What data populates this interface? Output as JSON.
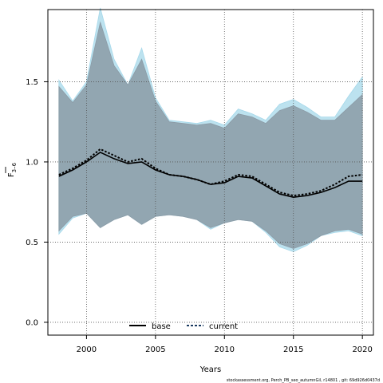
{
  "chart_data": {
    "type": "line",
    "xlabel": "Years",
    "ylabel_main": "F",
    "ylabel_sub": "3–6",
    "xlim": [
      1997.2,
      2020.8
    ],
    "ylim": [
      -0.08,
      1.95
    ],
    "x_ticks": [
      2000,
      2005,
      2010,
      2015,
      2020
    ],
    "x_tick_labels": [
      "2000",
      "2005",
      "2010",
      "2015",
      "2020"
    ],
    "y_ticks": [
      0.0,
      0.5,
      1.0,
      1.5
    ],
    "y_tick_labels": [
      "0.0",
      "0.5",
      "1.0",
      "1.5"
    ],
    "grid": true,
    "legend_position": "bottom-center",
    "footer_text": "stockassessment.org, Perch_PB_seo_autumnGil, r14801 , git: 69d926d0437d",
    "colors": {
      "base_band": "#8b9ba6",
      "current_band": "#a6d8ea",
      "line": "#000000",
      "current_line": "#1a3a60",
      "grid": "#555555"
    },
    "x": [
      1998,
      1999,
      2000,
      2001,
      2002,
      2003,
      2004,
      2005,
      2006,
      2007,
      2008,
      2009,
      2010,
      2011,
      2012,
      2013,
      2014,
      2015,
      2016,
      2017,
      2018,
      2019,
      2020
    ],
    "series": [
      {
        "name": "base",
        "style": "solid",
        "values": [
          0.91,
          0.95,
          1.0,
          1.06,
          1.02,
          0.99,
          1.0,
          0.95,
          0.92,
          0.91,
          0.89,
          0.86,
          0.87,
          0.91,
          0.9,
          0.85,
          0.8,
          0.78,
          0.79,
          0.81,
          0.84,
          0.88,
          0.88
        ],
        "upper": [
          1.47,
          1.37,
          1.48,
          1.87,
          1.6,
          1.48,
          1.64,
          1.38,
          1.25,
          1.24,
          1.23,
          1.24,
          1.21,
          1.3,
          1.28,
          1.24,
          1.32,
          1.35,
          1.31,
          1.26,
          1.26,
          1.34,
          1.42
        ],
        "lower": [
          0.57,
          0.66,
          0.68,
          0.59,
          0.64,
          0.67,
          0.61,
          0.66,
          0.67,
          0.66,
          0.64,
          0.59,
          0.62,
          0.64,
          0.63,
          0.57,
          0.49,
          0.46,
          0.49,
          0.54,
          0.57,
          0.58,
          0.55
        ]
      },
      {
        "name": "current",
        "style": "dotted",
        "values": [
          0.92,
          0.96,
          1.01,
          1.08,
          1.04,
          1.0,
          1.02,
          0.96,
          0.92,
          0.91,
          0.89,
          0.86,
          0.88,
          0.92,
          0.91,
          0.86,
          0.81,
          0.79,
          0.8,
          0.82,
          0.86,
          0.91,
          0.92
        ],
        "upper": [
          1.51,
          1.38,
          1.5,
          1.96,
          1.64,
          1.48,
          1.71,
          1.4,
          1.26,
          1.25,
          1.24,
          1.26,
          1.23,
          1.33,
          1.3,
          1.26,
          1.36,
          1.39,
          1.34,
          1.28,
          1.28,
          1.41,
          1.53
        ],
        "lower": [
          0.55,
          0.65,
          0.68,
          0.59,
          0.64,
          0.67,
          0.61,
          0.66,
          0.67,
          0.66,
          0.64,
          0.58,
          0.62,
          0.64,
          0.63,
          0.56,
          0.47,
          0.44,
          0.48,
          0.54,
          0.56,
          0.57,
          0.54
        ]
      }
    ]
  }
}
